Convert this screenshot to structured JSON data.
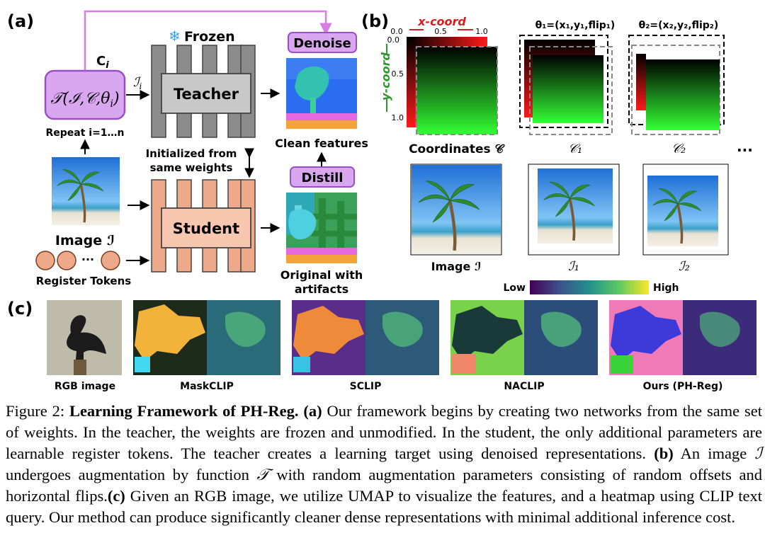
{
  "panel_a": {
    "label": "(a)",
    "c_i": "C",
    "c_i_sub": "i",
    "transform_main": "𝒯(ℐ,𝒞,θ",
    "transform_sub": "i",
    "transform_end": ")",
    "repeat": "Repeat i=1…n",
    "i_i": "ℐ",
    "i_i_sub": "i",
    "frozen": "Frozen",
    "teacher": "Teacher",
    "student": "Student",
    "init_line1": "Initialized from",
    "init_line2": "same weights",
    "image_label": "Image ℐ",
    "register_tokens": "Register Tokens",
    "denoise": "Denoise",
    "distill": "Distill",
    "clean_features": "Clean features",
    "original_line1": "Original with",
    "original_line2": "artifacts"
  },
  "panel_b": {
    "label": "(b)",
    "x_coord": "x-coord",
    "y_coord": "y-coord",
    "x_ticks": [
      "0.0",
      "0.5",
      "1.0"
    ],
    "y_ticks": [
      "0.0",
      "0.5",
      "1.0"
    ],
    "theta1": "θ₁=(x₁,y₁,flip₁)",
    "theta2": "θ₂=(x₂,y₂,flip₂)",
    "coordinates": "Coordinates 𝒞",
    "c1": "𝒞₁",
    "c2": "𝒞₂",
    "ellipsis": "...",
    "image_i": "Image ℐ",
    "i1": "ℐ₁",
    "i2": "ℐ₂",
    "colorbar_low": "Low",
    "colorbar_high": "High"
  },
  "panel_c": {
    "label": "(c)",
    "labels": [
      "RGB image",
      "MaskCLIP",
      "SCLIP",
      "NACLIP",
      "Ours (PH-Reg)"
    ]
  },
  "caption": {
    "fig": "Figure 2: ",
    "title": "Learning Framework of PH-Reg.",
    "pa": "(a)",
    "t1": " Our framework begins by creating two networks from the same set of weights. In the teacher, the weights are frozen and unmodified. In the student, the only additional parameters are learnable register tokens. The teacher creates a learning target using denoised representations. ",
    "pb": "(b)",
    "t2a": " An image ",
    "sym_i": "ℐ",
    "t2b": " undergoes augmentation by function ",
    "sym_t": "𝒯",
    "t2c": " with random augmentation parameters consisting of random offsets and horizontal flips.",
    "pc": "(c)",
    "t3": " Given an RGB image, we utilize UMAP to visualize the features, and a heatmap using CLIP text query. Our method can produce significantly cleaner dense representations with minimal additional inference cost."
  }
}
